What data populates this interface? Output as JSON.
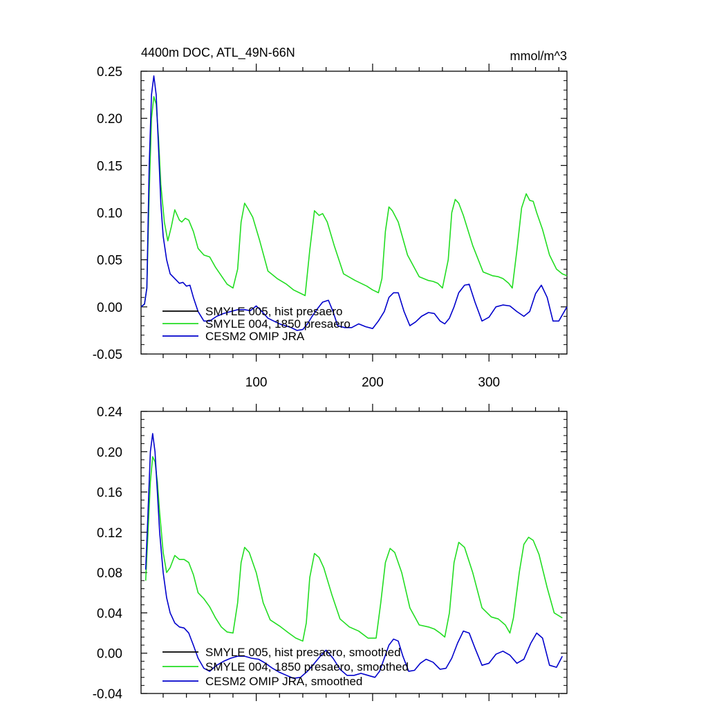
{
  "chart_data": [
    {
      "type": "line",
      "title": "4400m DOC, ATL_49N-66N",
      "units": "mmol/m^3",
      "xlim": [
        1,
        367
      ],
      "ylim": [
        -0.05,
        0.25
      ],
      "x_ticks": [
        100,
        200,
        300
      ],
      "x_tick_labels": [
        "100",
        "200",
        "300"
      ],
      "y_ticks": [
        -0.05,
        0.0,
        0.05,
        0.1,
        0.15,
        0.2,
        0.25
      ],
      "y_tick_labels": [
        "-0.05",
        "0.00",
        "0.05",
        "0.10",
        "0.15",
        "0.20",
        "0.25"
      ],
      "legend": "bottom-left",
      "series": [
        {
          "name": "SMYLE 005, hist presaero",
          "color": "#000000",
          "x": [],
          "y": []
        },
        {
          "name": "SMYLE 004, 1850 presaero",
          "color": "#22dd22",
          "x": [
            1,
            4,
            6,
            8,
            10,
            12,
            14,
            16,
            18,
            21,
            24,
            27,
            30,
            34,
            36,
            39,
            42,
            46,
            50,
            55,
            60,
            65,
            70,
            75,
            80,
            84,
            87,
            90,
            93,
            97,
            103,
            110,
            118,
            126,
            132,
            137,
            142,
            146,
            150,
            154,
            157,
            161,
            167,
            175,
            185,
            195,
            200,
            205,
            208,
            211,
            214,
            217,
            222,
            230,
            240,
            248,
            252,
            256,
            260,
            265,
            268,
            271,
            274,
            278,
            286,
            295,
            303,
            308,
            312,
            317,
            320,
            324,
            328,
            332,
            335,
            338,
            341,
            346,
            352,
            358,
            363,
            367
          ],
          "y": [
            0.0,
            0.003,
            0.02,
            0.12,
            0.2,
            0.223,
            0.215,
            0.18,
            0.13,
            0.09,
            0.07,
            0.085,
            0.103,
            0.092,
            0.09,
            0.094,
            0.092,
            0.08,
            0.062,
            0.055,
            0.053,
            0.042,
            0.033,
            0.024,
            0.02,
            0.04,
            0.09,
            0.11,
            0.104,
            0.095,
            0.07,
            0.038,
            0.03,
            0.024,
            0.018,
            0.015,
            0.012,
            0.06,
            0.102,
            0.097,
            0.099,
            0.09,
            0.065,
            0.035,
            0.028,
            0.022,
            0.018,
            0.015,
            0.03,
            0.08,
            0.106,
            0.102,
            0.09,
            0.055,
            0.032,
            0.028,
            0.027,
            0.025,
            0.02,
            0.05,
            0.1,
            0.114,
            0.11,
            0.097,
            0.065,
            0.037,
            0.033,
            0.032,
            0.03,
            0.025,
            0.02,
            0.06,
            0.105,
            0.12,
            0.113,
            0.112,
            0.1,
            0.082,
            0.055,
            0.04,
            0.035,
            0.033
          ]
        },
        {
          "name": "CESM2 OMIP JRA",
          "color": "#0000cc",
          "x": [
            1,
            4,
            6,
            8,
            10,
            12,
            14,
            16,
            18,
            20,
            23,
            26,
            30,
            34,
            37,
            40,
            43,
            46,
            50,
            55,
            60,
            66,
            72,
            78,
            84,
            90,
            95,
            100,
            105,
            110,
            115,
            120,
            125,
            130,
            135,
            140,
            144,
            148,
            152,
            157,
            162,
            166,
            170,
            176,
            182,
            188,
            194,
            200,
            205,
            210,
            214,
            218,
            222,
            227,
            232,
            237,
            242,
            248,
            253,
            258,
            262,
            266,
            270,
            274,
            279,
            283,
            288,
            294,
            300,
            306,
            312,
            318,
            324,
            330,
            335,
            340,
            345,
            350,
            355,
            360,
            367
          ],
          "y": [
            0.0,
            0.003,
            0.02,
            0.15,
            0.225,
            0.245,
            0.225,
            0.17,
            0.11,
            0.075,
            0.05,
            0.035,
            0.03,
            0.025,
            0.026,
            0.022,
            0.023,
            0.01,
            -0.005,
            -0.015,
            -0.015,
            -0.01,
            -0.007,
            -0.005,
            -0.003,
            -0.003,
            -0.004,
            0.001,
            -0.005,
            -0.012,
            -0.015,
            -0.018,
            -0.02,
            -0.022,
            -0.025,
            -0.024,
            -0.018,
            -0.01,
            -0.003,
            0.005,
            0.007,
            -0.005,
            -0.02,
            -0.022,
            -0.022,
            -0.018,
            -0.021,
            -0.023,
            -0.015,
            -0.005,
            0.01,
            0.015,
            0.015,
            -0.005,
            -0.02,
            -0.016,
            -0.01,
            -0.006,
            -0.007,
            -0.015,
            -0.018,
            -0.012,
            0.0,
            0.015,
            0.023,
            0.024,
            0.005,
            -0.015,
            -0.011,
            0.0,
            0.002,
            0.001,
            -0.005,
            -0.01,
            -0.005,
            0.014,
            0.023,
            0.01,
            -0.015,
            -0.015,
            0.0
          ]
        }
      ]
    },
    {
      "type": "line",
      "title": "",
      "xlim": [
        1,
        367
      ],
      "ylim": [
        -0.04,
        0.24
      ],
      "x_ticks": [
        100,
        200,
        300
      ],
      "x_tick_labels": [
        "",
        "",
        ""
      ],
      "y_ticks": [
        -0.04,
        0.0,
        0.04,
        0.08,
        0.12,
        0.16,
        0.2,
        0.24
      ],
      "y_tick_labels": [
        "-0.04",
        "0.00",
        "0.04",
        "0.08",
        "0.12",
        "0.16",
        "0.20",
        "0.24"
      ],
      "legend": "bottom-left",
      "series": [
        {
          "name": "SMYLE 005, hist presaero, smoothed",
          "color": "#000000",
          "x": [],
          "y": []
        },
        {
          "name": "SMYLE 004, 1850 presaero, smoothed",
          "color": "#22dd22",
          "x": [
            5,
            7,
            9,
            11,
            13,
            15,
            17,
            20,
            23,
            26,
            30,
            34,
            38,
            42,
            46,
            50,
            55,
            60,
            65,
            70,
            75,
            80,
            84,
            87,
            90,
            94,
            100,
            106,
            112,
            120,
            128,
            134,
            140,
            143,
            146,
            150,
            154,
            158,
            165,
            172,
            180,
            188,
            196,
            203,
            207,
            211,
            215,
            219,
            225,
            232,
            240,
            248,
            253,
            258,
            262,
            266,
            270,
            274,
            279,
            286,
            294,
            302,
            308,
            314,
            318,
            321,
            326,
            330,
            334,
            338,
            343,
            350,
            356,
            363
          ],
          "y": [
            0.072,
            0.12,
            0.17,
            0.195,
            0.19,
            0.17,
            0.14,
            0.1,
            0.08,
            0.085,
            0.097,
            0.093,
            0.093,
            0.09,
            0.078,
            0.06,
            0.054,
            0.046,
            0.035,
            0.026,
            0.021,
            0.02,
            0.05,
            0.09,
            0.105,
            0.1,
            0.08,
            0.05,
            0.033,
            0.027,
            0.02,
            0.015,
            0.012,
            0.03,
            0.075,
            0.099,
            0.095,
            0.085,
            0.058,
            0.034,
            0.026,
            0.022,
            0.015,
            0.015,
            0.05,
            0.09,
            0.104,
            0.1,
            0.08,
            0.045,
            0.028,
            0.026,
            0.024,
            0.02,
            0.016,
            0.04,
            0.09,
            0.11,
            0.105,
            0.08,
            0.045,
            0.036,
            0.034,
            0.028,
            0.02,
            0.035,
            0.08,
            0.108,
            0.115,
            0.112,
            0.098,
            0.065,
            0.04,
            0.035
          ]
        },
        {
          "name": "CESM2 OMIP JRA, smoothed",
          "color": "#0000cc",
          "x": [
            5,
            7,
            9,
            11,
            13,
            15,
            17,
            20,
            23,
            26,
            30,
            34,
            38,
            42,
            46,
            50,
            55,
            60,
            66,
            72,
            78,
            84,
            90,
            96,
            102,
            108,
            114,
            120,
            126,
            132,
            138,
            144,
            150,
            155,
            160,
            166,
            172,
            178,
            184,
            190,
            196,
            202,
            206,
            210,
            214,
            218,
            222,
            226,
            231,
            236,
            241,
            246,
            252,
            258,
            263,
            268,
            273,
            278,
            283,
            288,
            294,
            300,
            306,
            312,
            318,
            324,
            330,
            336,
            341,
            346,
            352,
            358,
            363
          ],
          "y": [
            0.083,
            0.14,
            0.2,
            0.218,
            0.2,
            0.16,
            0.12,
            0.08,
            0.055,
            0.04,
            0.03,
            0.026,
            0.025,
            0.02,
            0.008,
            -0.005,
            -0.015,
            -0.018,
            -0.012,
            -0.008,
            -0.005,
            -0.003,
            -0.003,
            -0.005,
            -0.006,
            -0.01,
            -0.015,
            -0.019,
            -0.022,
            -0.025,
            -0.024,
            -0.018,
            -0.01,
            -0.003,
            0.003,
            -0.005,
            -0.016,
            -0.022,
            -0.022,
            -0.02,
            -0.022,
            -0.024,
            -0.018,
            -0.005,
            0.008,
            0.014,
            0.012,
            -0.003,
            -0.018,
            -0.017,
            -0.01,
            -0.006,
            -0.009,
            -0.016,
            -0.015,
            -0.005,
            0.01,
            0.022,
            0.02,
            0.005,
            -0.012,
            -0.01,
            -0.001,
            0.002,
            -0.002,
            -0.01,
            -0.006,
            0.01,
            0.02,
            0.015,
            -0.012,
            -0.014,
            -0.003
          ]
        }
      ]
    }
  ]
}
